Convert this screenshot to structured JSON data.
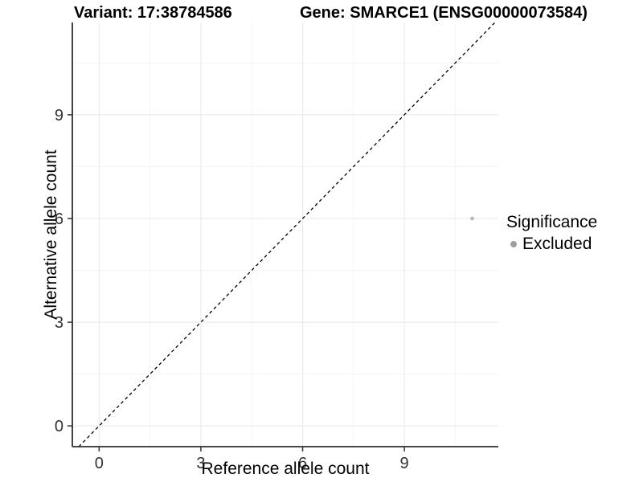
{
  "chart_data": {
    "type": "scatter",
    "title_variant": "Variant: 17:38784586",
    "title_gene": "Gene: SMARCE1 (ENSG00000073584)",
    "xlabel": "Reference allele count",
    "ylabel": "Alternative allele count",
    "xlim": [
      -0.79,
      11.77
    ],
    "ylim": [
      -0.6,
      11.67
    ],
    "major_ticks": [
      0,
      3,
      6,
      9
    ],
    "minor_gridlines": [
      1.5,
      4.5,
      7.5,
      10.5
    ],
    "grid": "major and minor gridlines on white background",
    "reference_line": {
      "type": "identity",
      "equation": "y = x",
      "style": "dashed",
      "color": "#000000"
    },
    "points": [
      {
        "x": 11,
        "y": 6,
        "series": "Excluded",
        "color": "#b5b5b5",
        "radius_px": 2.3
      }
    ],
    "legend": {
      "position": "right",
      "title": "Significance",
      "items": [
        {
          "label": "Excluded",
          "color": "#9f9f9f"
        }
      ]
    },
    "colors": {
      "background": "#ffffff",
      "major_grid": "#e8e8e8",
      "minor_grid": "#f4f4f4",
      "axis_line": "#2e2e2e",
      "tick_mark": "#333333",
      "tick_label": "#333333",
      "text": "#000000"
    }
  }
}
